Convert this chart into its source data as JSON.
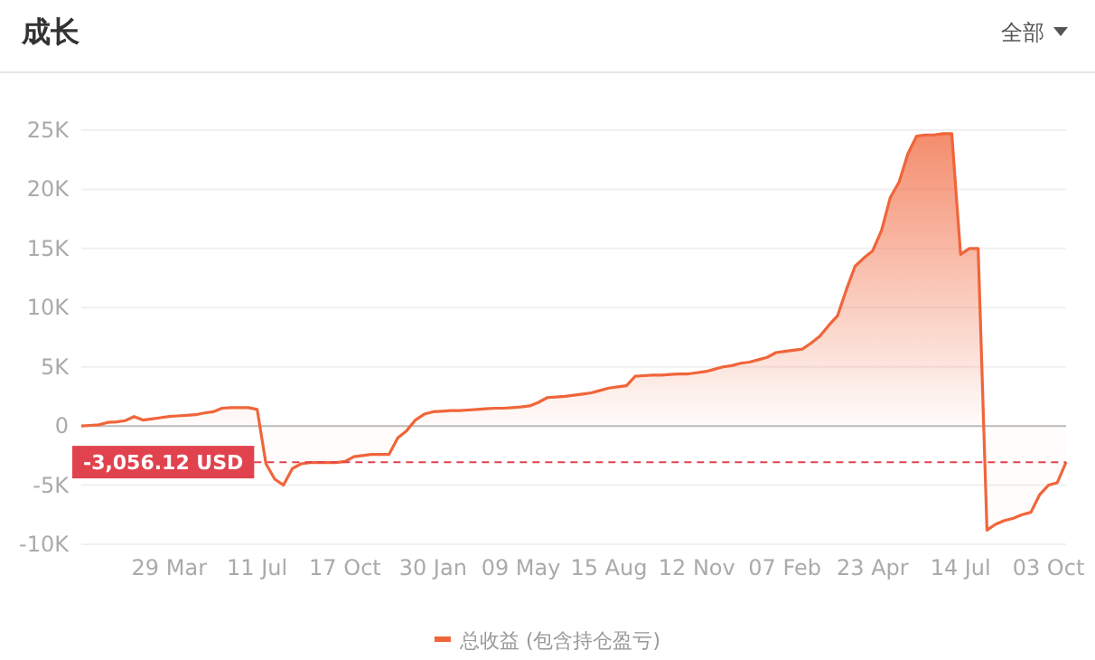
{
  "chart_data": {
    "type": "area",
    "title": "成长",
    "annotations": [
      "全部"
    ],
    "categories": [
      null,
      null,
      null,
      null,
      null,
      null,
      null,
      null,
      null,
      null,
      "29 Mar",
      null,
      null,
      null,
      null,
      null,
      null,
      null,
      null,
      null,
      "11 Jul",
      null,
      null,
      null,
      null,
      null,
      null,
      null,
      null,
      null,
      "17 Oct",
      null,
      null,
      null,
      null,
      null,
      null,
      null,
      null,
      null,
      "30 Jan",
      null,
      null,
      null,
      null,
      null,
      null,
      null,
      null,
      null,
      "09 May",
      null,
      null,
      null,
      null,
      null,
      null,
      null,
      null,
      null,
      "15 Aug",
      null,
      null,
      null,
      null,
      null,
      null,
      null,
      null,
      null,
      "12 Nov",
      null,
      null,
      null,
      null,
      null,
      null,
      null,
      null,
      null,
      "07 Feb",
      null,
      null,
      null,
      null,
      null,
      null,
      null,
      null,
      null,
      "23 Apr",
      null,
      null,
      null,
      null,
      null,
      null,
      null,
      null,
      null,
      "14 Jul",
      null,
      null,
      null,
      null,
      null,
      null,
      null,
      null,
      null,
      "03 Oct",
      null,
      null
    ],
    "series": [
      {
        "name": "总收益 (包含持仓盈亏)",
        "color": "#f0653a",
        "values": [
          0,
          50,
          100,
          300,
          350,
          450,
          800,
          500,
          600,
          700,
          800,
          850,
          900,
          950,
          1100,
          1200,
          1500,
          1550,
          1550,
          1550,
          1400,
          -3200,
          -4500,
          -5000,
          -3600,
          -3200,
          -3100,
          -3100,
          -3100,
          -3100,
          -3000,
          -2600,
          -2500,
          -2400,
          -2400,
          -2400,
          -1000,
          -400,
          500,
          1000,
          1200,
          1250,
          1300,
          1300,
          1350,
          1400,
          1450,
          1500,
          1500,
          1550,
          1600,
          1700,
          2000,
          2400,
          2450,
          2500,
          2600,
          2700,
          2800,
          3000,
          3200,
          3300,
          3400,
          4200,
          4250,
          4300,
          4300,
          4350,
          4400,
          4400,
          4500,
          4600,
          4800,
          5000,
          5100,
          5300,
          5400,
          5600,
          5800,
          6200,
          6300,
          6400,
          6500,
          7000,
          7600,
          8500,
          9300,
          11500,
          13500,
          14200,
          14800,
          16500,
          19300,
          20600,
          23000,
          24500,
          24600,
          24600,
          24700,
          24700,
          14500,
          15000,
          15000,
          -8800,
          -8300,
          -8000,
          -7800,
          -7500,
          -7300,
          -5800,
          -5000,
          -4800,
          -3056.12
        ]
      }
    ],
    "ylim": [
      -10000,
      25000
    ],
    "yticks": [
      {
        "value": -10000,
        "label": "-10K"
      },
      {
        "value": -5000,
        "label": "-5K"
      },
      0,
      {
        "value": 5000,
        "label": "5K"
      },
      {
        "value": 10000,
        "label": "10K"
      },
      {
        "value": 15000,
        "label": "15K"
      },
      {
        "value": 20000,
        "label": "20K"
      },
      {
        "value": 25000,
        "label": "25K"
      }
    ],
    "grid": "y",
    "legend": "bottom",
    "ref_lines": [
      {
        "axis": "y",
        "value": -3056.12,
        "label": "-3,056.12 USD",
        "color": "#e0434e",
        "line_style": "dashed"
      }
    ]
  }
}
